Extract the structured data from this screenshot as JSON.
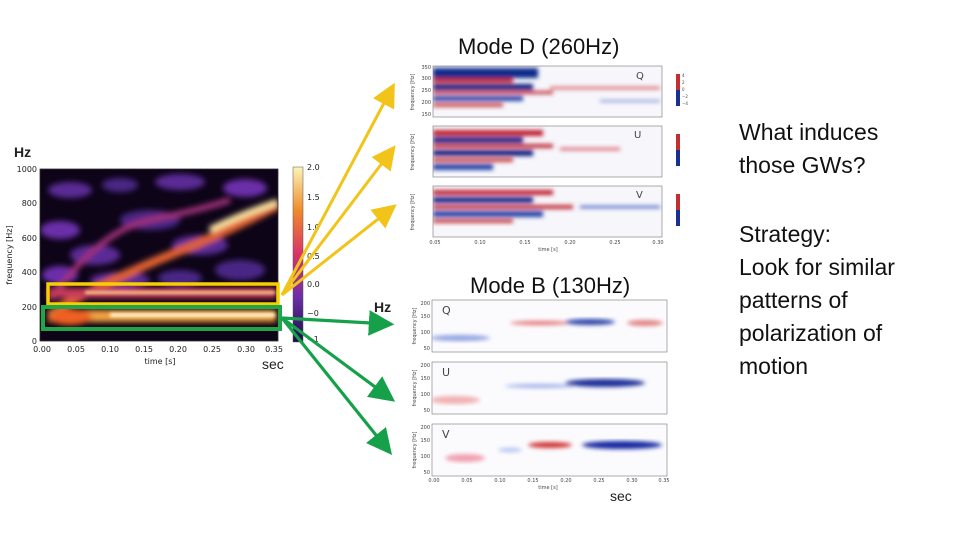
{
  "labels": {
    "mode_d_title": "Mode D (260Hz)",
    "mode_b_title": "Mode B (130Hz)",
    "hz_left": "Hz",
    "hz_mid": "Hz",
    "sec_left": "sec",
    "sec_bottom": "sec"
  },
  "side_text": {
    "question_line1": "What induces",
    "question_line2": "those GWs?",
    "strategy_lines": [
      "Strategy:",
      "Look for similar",
      "patterns of",
      "polarization of",
      "motion"
    ]
  },
  "spectrogram": {
    "y_axis_label": "frequency [Hz]",
    "x_axis_label": "time [s]",
    "y_ticks": [
      "1000",
      "800",
      "600",
      "400",
      "200",
      "0"
    ],
    "x_ticks": [
      "0.00",
      "0.05",
      "0.10",
      "0.15",
      "0.20",
      "0.25",
      "0.30",
      "0.35"
    ],
    "colorbar_ticks": [
      "2.0",
      "1.5",
      "1.0",
      "0.5",
      "0.0",
      "−0",
      "−1"
    ]
  },
  "mode_d_panels": {
    "y_axis_label": "frequency [Hz]",
    "x_axis_label": "time [s]",
    "y_ticks": [
      "350",
      "300",
      "250",
      "200",
      "150"
    ],
    "x_ticks": [
      "0.05",
      "0.10",
      "0.15",
      "0.20",
      "0.25",
      "0.30"
    ],
    "cbar_ticks": [
      "4",
      "2",
      "0",
      "−2",
      "−4"
    ],
    "panels": [
      {
        "letter": "Q"
      },
      {
        "letter": "U"
      },
      {
        "letter": "V"
      }
    ]
  },
  "mode_b_panels": {
    "y_axis_label": "frequency [Hz]",
    "x_axis_label": "time [s]",
    "y_ticks": [
      "200",
      "150",
      "100",
      "50"
    ],
    "x_ticks": [
      "0.00",
      "0.05",
      "0.10",
      "0.15",
      "0.20",
      "0.25",
      "0.30",
      "0.35"
    ],
    "panels": [
      {
        "letter": "Q"
      },
      {
        "letter": "U"
      },
      {
        "letter": "V"
      }
    ]
  },
  "colors": {
    "yellow_highlight": "#f4d000",
    "green_highlight": "#21a548",
    "arrow_yellow": "#f2c318",
    "arrow_green": "#16a04a"
  }
}
